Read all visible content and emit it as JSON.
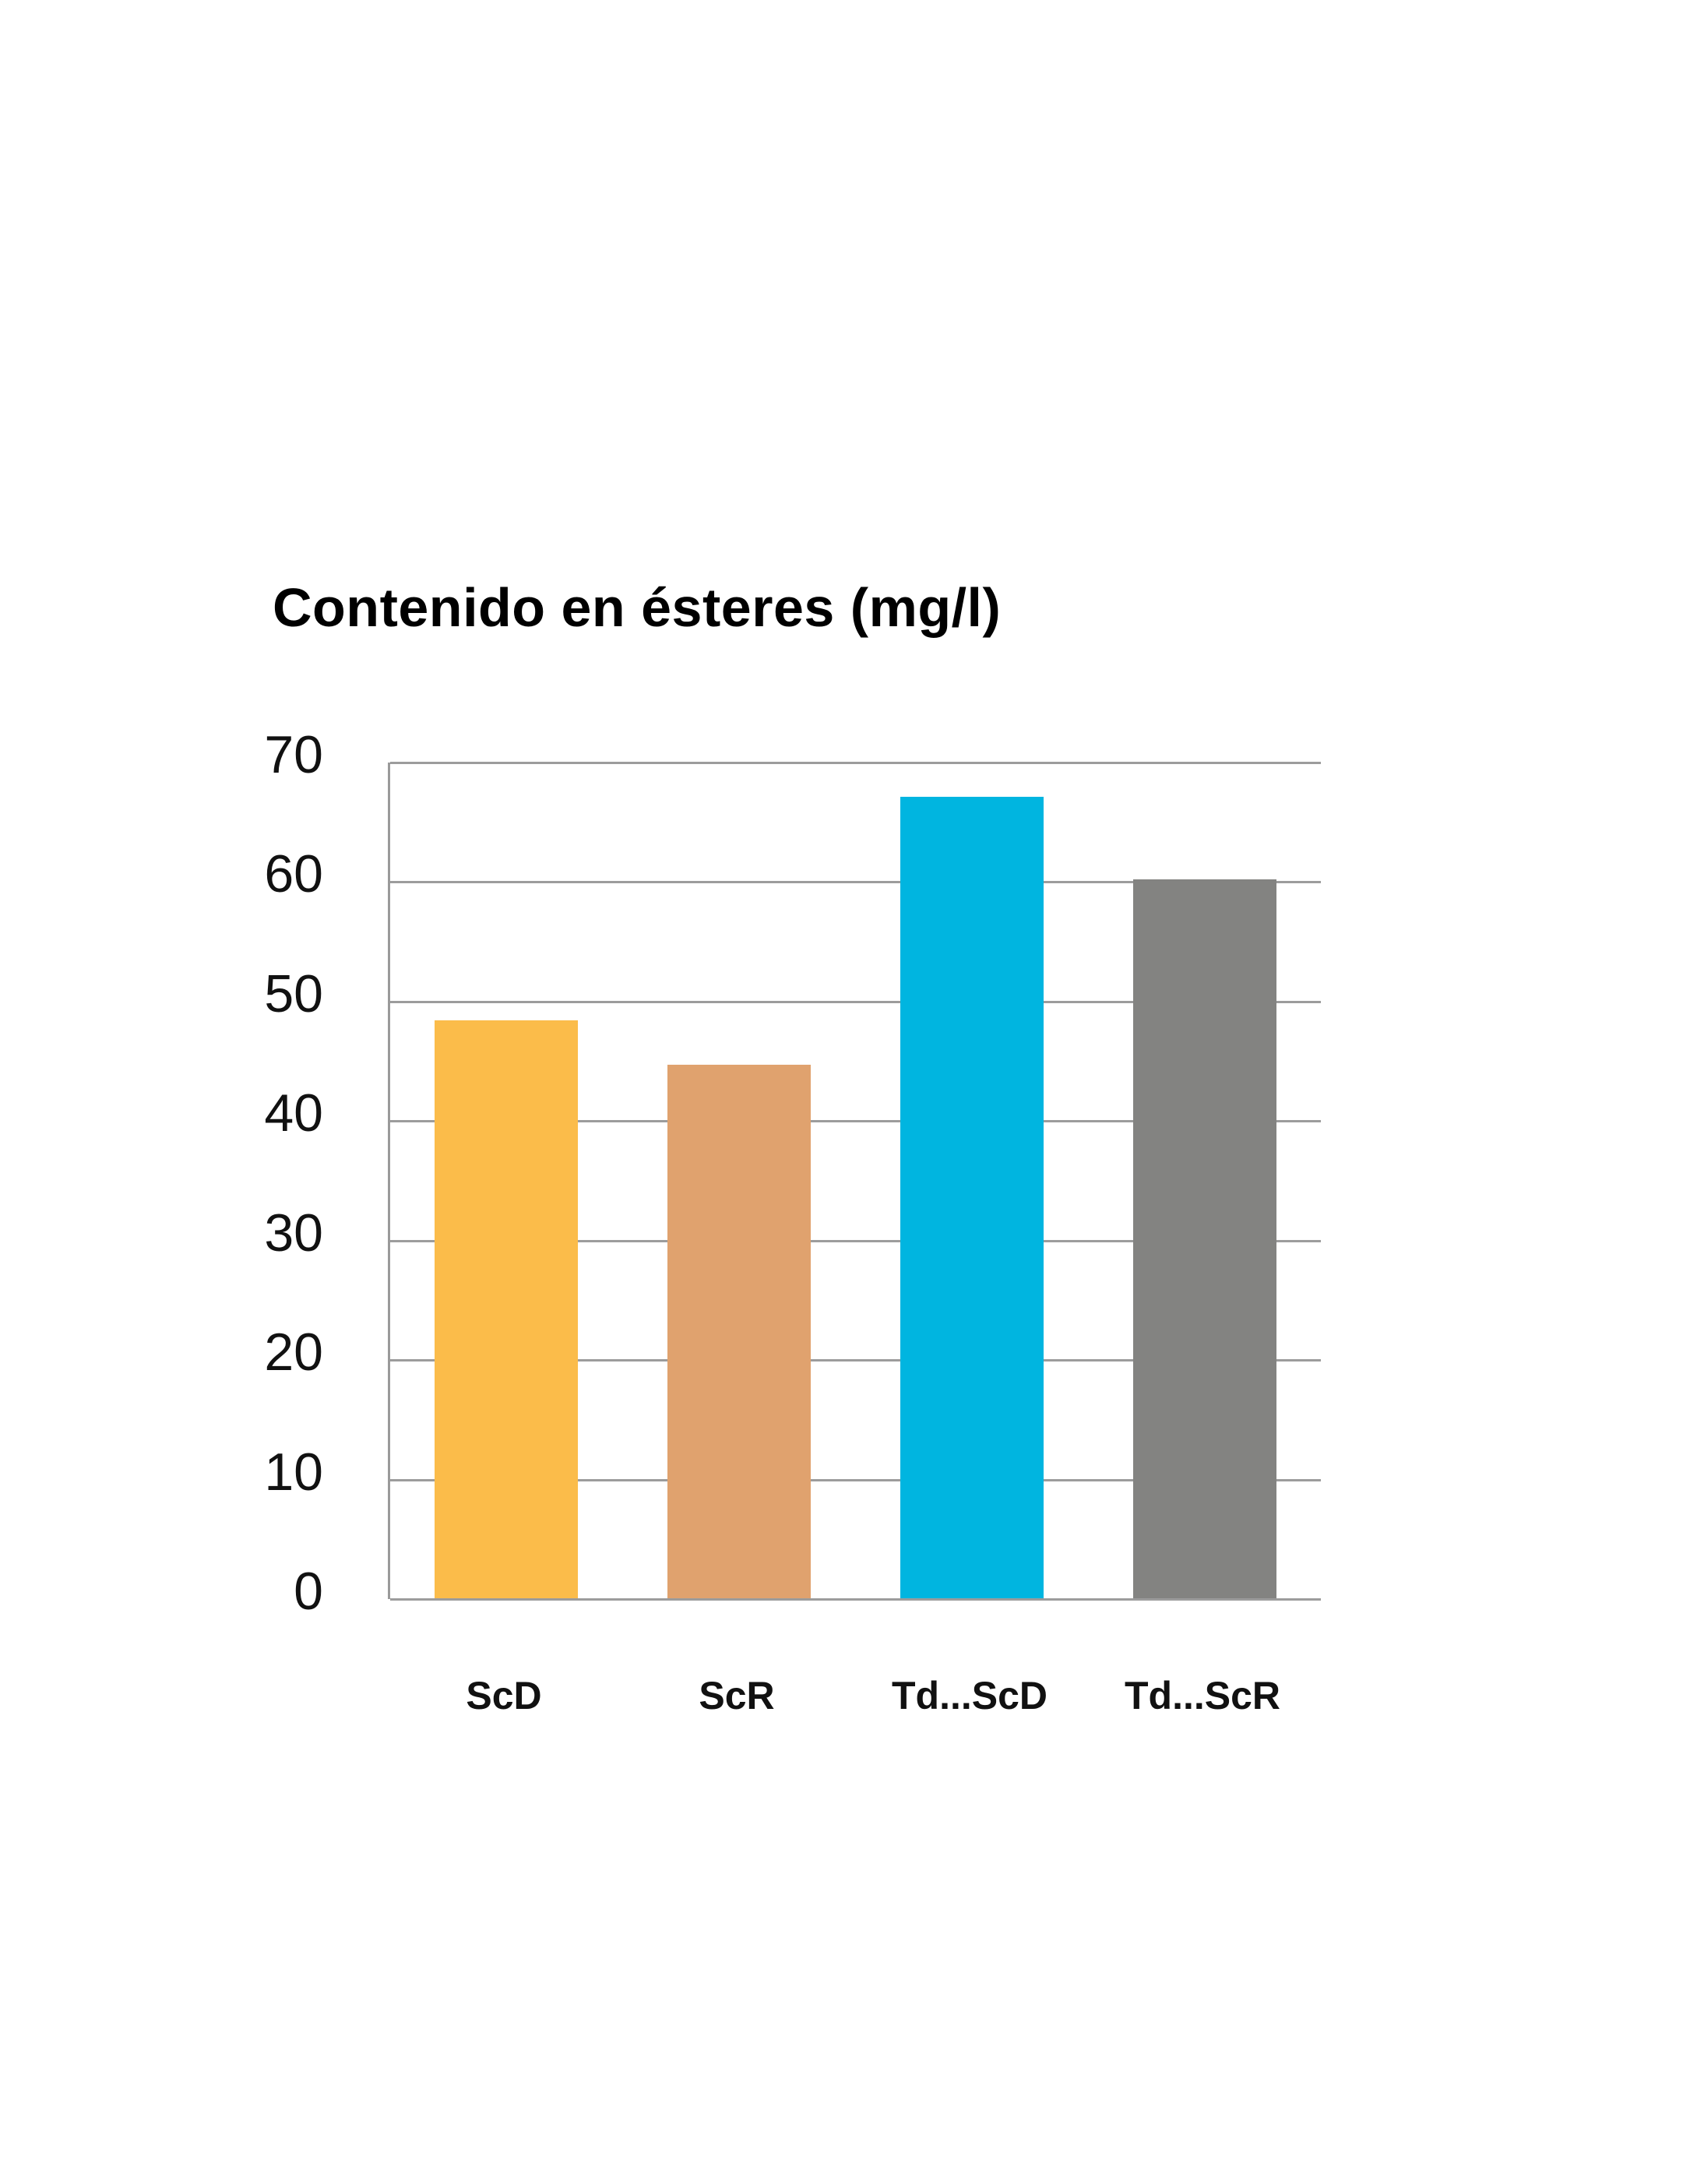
{
  "page": {
    "background": "#FFFFFF"
  },
  "chart_data": {
    "type": "bar",
    "title": "Contenido en ésteres (mg/l)",
    "categories": [
      "ScD",
      "ScR",
      "Td...ScD",
      "Td...ScR"
    ],
    "values": [
      48.4,
      44.7,
      67.1,
      60.2
    ],
    "bar_colors": [
      "#FBBC4A",
      "#E0A26E",
      "#00B5E0",
      "#838381"
    ],
    "ylim": [
      0,
      70
    ],
    "yticks": [
      0,
      10,
      20,
      30,
      40,
      50,
      60,
      70
    ],
    "xlabel": "",
    "ylabel": "",
    "grid": true,
    "legend": "none",
    "gridline_color": "#9C9C9C",
    "axis_line_color": "#9A9A9A",
    "title_color": "#000000",
    "label_color": "#111111"
  }
}
